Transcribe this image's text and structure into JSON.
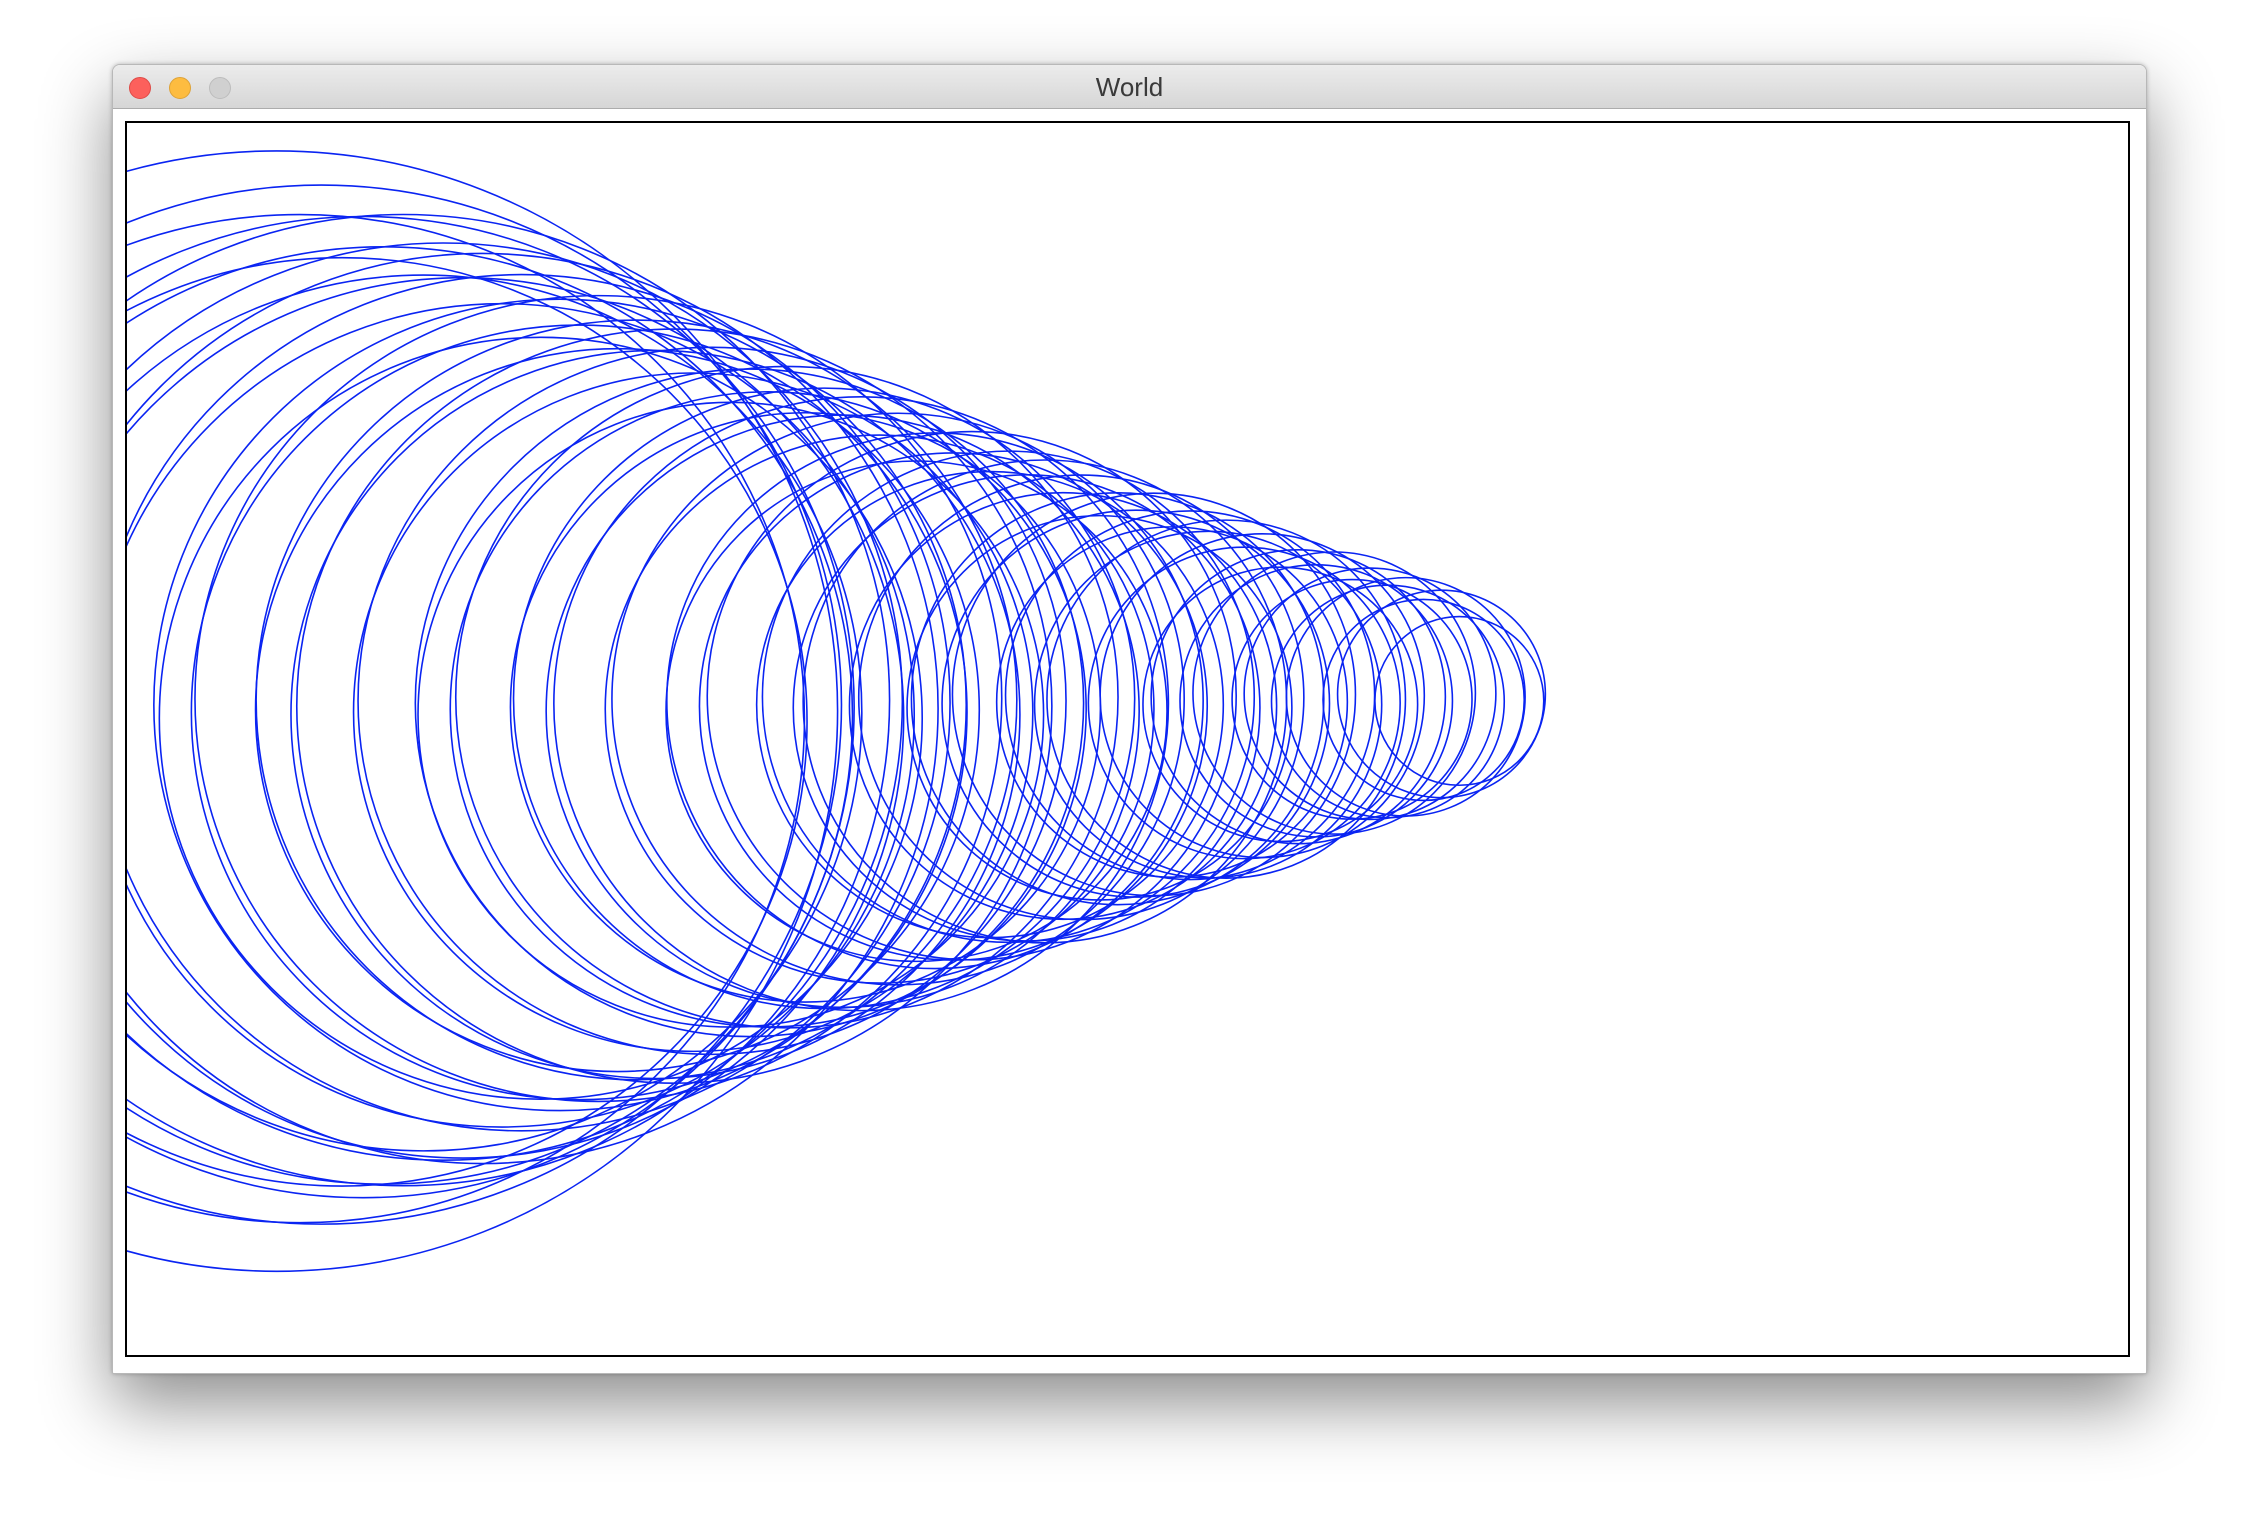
{
  "window": {
    "title": "World"
  },
  "scene": {
    "stroke_color": "#0a24f2",
    "background_color": "#ffffff",
    "border_color": "#000000"
  }
}
